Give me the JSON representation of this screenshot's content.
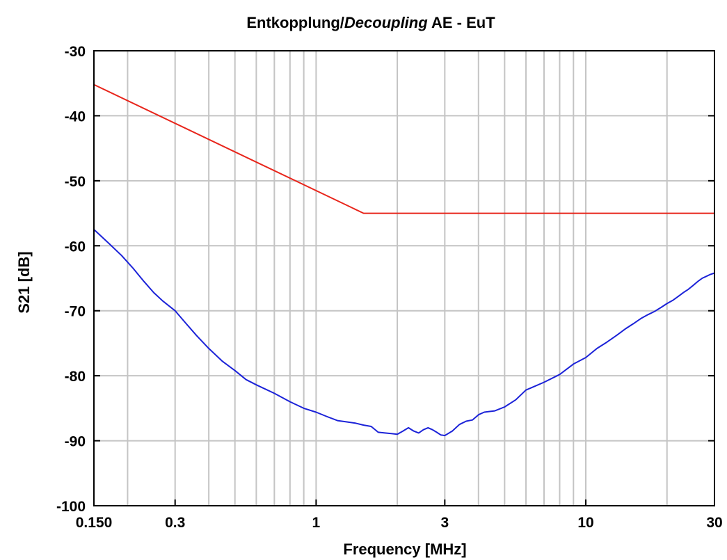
{
  "chart_data": {
    "type": "line",
    "title_main": "Entkopplung/",
    "title_italic": "Decoupling",
    "title_rest": " AE - EuT",
    "xlabel": "Frequency [MHz]",
    "ylabel": "S21 [dB]",
    "x_scale": "log",
    "xlim": [
      0.15,
      30
    ],
    "ylim": [
      -100,
      -30
    ],
    "x_ticks": [
      0.15,
      0.3,
      1,
      3,
      10,
      30
    ],
    "x_tick_labels": [
      "0.150",
      "0.3",
      "1",
      "3",
      "10",
      "30"
    ],
    "y_ticks": [
      -100,
      -90,
      -80,
      -70,
      -60,
      -50,
      -40,
      -30
    ],
    "y_tick_labels": [
      "-100",
      "-90",
      "-80",
      "-70",
      "-60",
      "-50",
      "-40",
      "-30"
    ],
    "x_gridlines": [
      0.2,
      0.3,
      0.4,
      0.5,
      0.6,
      0.7,
      0.8,
      0.9,
      1,
      2,
      3,
      4,
      5,
      6,
      7,
      8,
      9,
      10,
      20
    ],
    "grid": true,
    "series": [
      {
        "color": "#e8251b",
        "x": [
          0.15,
          1.5,
          30
        ],
        "y": [
          -35.2,
          -55,
          -55
        ]
      },
      {
        "color": "#1b22d8",
        "x": [
          0.15,
          0.17,
          0.19,
          0.21,
          0.23,
          0.25,
          0.27,
          0.3,
          0.33,
          0.36,
          0.4,
          0.45,
          0.5,
          0.55,
          0.6,
          0.7,
          0.8,
          0.9,
          1.0,
          1.1,
          1.2,
          1.3,
          1.4,
          1.5,
          1.6,
          1.7,
          1.8,
          1.9,
          2.0,
          2.1,
          2.2,
          2.3,
          2.4,
          2.5,
          2.6,
          2.7,
          2.8,
          2.9,
          3.0,
          3.2,
          3.4,
          3.6,
          3.8,
          4.0,
          4.2,
          4.4,
          4.6,
          5.0,
          5.5,
          6.0,
          7.0,
          8.0,
          9.0,
          10,
          11,
          12,
          13,
          14,
          15,
          16,
          17,
          18,
          19,
          20,
          21,
          22,
          23,
          24,
          25,
          26,
          27,
          28,
          29,
          30
        ],
        "y": [
          -57.5,
          -59.6,
          -61.5,
          -63.5,
          -65.5,
          -67.2,
          -68.5,
          -70.0,
          -72.0,
          -73.8,
          -75.8,
          -77.8,
          -79.2,
          -80.6,
          -81.4,
          -82.7,
          -84.0,
          -85.0,
          -85.6,
          -86.3,
          -86.9,
          -87.1,
          -87.3,
          -87.6,
          -87.8,
          -88.7,
          -88.8,
          -88.9,
          -89.0,
          -88.5,
          -88.0,
          -88.5,
          -88.8,
          -88.3,
          -88.0,
          -88.3,
          -88.7,
          -89.1,
          -89.2,
          -88.5,
          -87.5,
          -87.0,
          -86.8,
          -86.0,
          -85.6,
          -85.5,
          -85.4,
          -84.8,
          -83.7,
          -82.2,
          -81.0,
          -79.8,
          -78.2,
          -77.2,
          -75.8,
          -74.8,
          -73.8,
          -72.8,
          -72.0,
          -71.2,
          -70.6,
          -70.1,
          -69.5,
          -68.9,
          -68.4,
          -67.8,
          -67.2,
          -66.7,
          -66.1,
          -65.5,
          -65.0,
          -64.7,
          -64.4,
          -64.2
        ]
      }
    ]
  }
}
